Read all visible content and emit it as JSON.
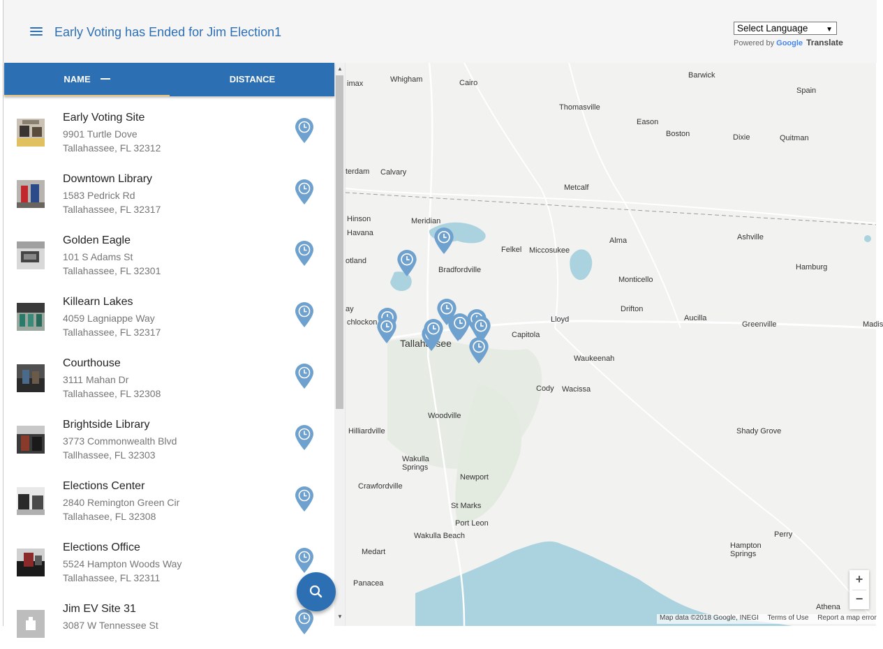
{
  "header": {
    "title": "Early Voting has Ended for Jim Election1",
    "language_select": "Select Language",
    "powered_by": "Powered by",
    "google": "Google",
    "translate": "Translate"
  },
  "tabs": {
    "name": "NAME",
    "distance": "DISTANCE"
  },
  "locations": [
    {
      "name": "Early Voting Site",
      "address": "9901 Turtle Dove",
      "city": "Tallahassee, FL 32312"
    },
    {
      "name": "Downtown Library",
      "address": "1583 Pedrick Rd",
      "city": "Tallahassee, FL 32317"
    },
    {
      "name": "Golden Eagle",
      "address": "101 S Adams St",
      "city": "Tallahassee, FL 32301"
    },
    {
      "name": "Killearn Lakes",
      "address": "4059 Lagniappe Way",
      "city": "Tallahassee, FL 32317"
    },
    {
      "name": "Courthouse",
      "address": "3111 Mahan Dr",
      "city": "Tallahassee, FL 32308"
    },
    {
      "name": "Brightside Library",
      "address": "3773 Commonwealth Blvd",
      "city": "Tallhassee, FL 32303"
    },
    {
      "name": "Elections Center",
      "address": "2840 Remington Green Cir",
      "city": "Tallahasee, FL 32308"
    },
    {
      "name": "Elections Office",
      "address": "5524 Hampton Woods Way",
      "city": "Tallahassee, FL 32311"
    },
    {
      "name": "Jim EV Site 31",
      "address": "3087 W Tennessee St",
      "city": ""
    }
  ],
  "map": {
    "labels": {
      "imax": "imax",
      "whigham": "Whigham",
      "cairo": "Cairo",
      "barwick": "Barwick",
      "spain": "Spain",
      "thomasville": "Thomasville",
      "eason": "Eason",
      "boston": "Boston",
      "dixie": "Dixie",
      "quitman": "Quitman",
      "calvary": "Calvary",
      "terdam": "terdam",
      "metcalf": "Metcalf",
      "hinson": "Hinson",
      "havana": "Havana",
      "meridian": "Meridian",
      "ashville": "Ashville",
      "alma": "Alma",
      "felkel": "Felkel",
      "miccosukee": "Miccosukee",
      "otland": "otland",
      "bradfordville": "Bradfordville",
      "hamburg": "Hamburg",
      "monticello": "Monticello",
      "ay": "ay",
      "chlockon": "chlockon",
      "drifton": "Drifton",
      "lloyd": "Lloyd",
      "aucilla": "Aucilla",
      "greenville": "Greenville",
      "madis": "Madis",
      "tallahassee": "Tallahassee",
      "capitola": "Capitola",
      "waukeenah": "Waukeenah",
      "cody": "Cody",
      "wacissa": "Wacissa",
      "woodville": "Woodville",
      "hilliardville": "Hilliardville",
      "shady_grove": "Shady Grove",
      "wakulla_springs": "Wakulla Springs",
      "newport": "Newport",
      "crawfordville": "Crawfordville",
      "st_marks": "St Marks",
      "port_leon": "Port Leon",
      "wakulla_beach": "Wakulla Beach",
      "perry": "Perry",
      "medart": "Medart",
      "hampton_springs": "Hampton Springs",
      "panacea": "Panacea",
      "athena": "Athena"
    },
    "zoom_in": "+",
    "zoom_out": "−",
    "attribution": "Map data ©2018 Google, INEGI",
    "terms": "Terms of Use",
    "report": "Report a map error"
  },
  "colors": {
    "primary": "#2d6fb3",
    "pin": "#6fa1cf",
    "water": "#aad3df",
    "tab_indicator": "#e8c581"
  },
  "icons": {
    "menu": "menu-icon",
    "search": "search-icon",
    "pin": "clock-pin-icon"
  }
}
